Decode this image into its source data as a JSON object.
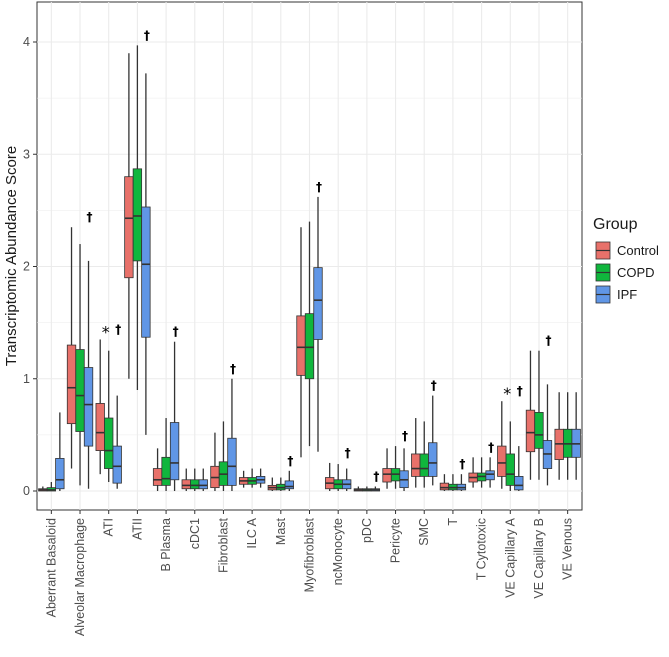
{
  "chart_data": {
    "type": "boxplot",
    "title": "",
    "xlabel": "",
    "ylabel": "Transcriptomic Abundance Score",
    "ylim": [
      -0.2,
      4.3
    ],
    "yticks": [
      0,
      1,
      2,
      3,
      4
    ],
    "grid": true,
    "legend": {
      "title": "Group",
      "placement": "right",
      "entries": [
        "Control",
        "COPD",
        "IPF"
      ]
    },
    "colors": {
      "Control": "#E8716A",
      "COPD": "#10B63D",
      "IPF": "#6096E6"
    },
    "categories": [
      "Aberrant Basaloid",
      "Alveolar Macrophage",
      "ATI",
      "ATII",
      "B Plasma",
      "cDC1",
      "Fibroblast",
      "ILC A",
      "Mast",
      "Myofibroblast",
      "ncMonocyte",
      "pDC",
      "Pericyte",
      "SMC",
      "T",
      "T Cytotoxic",
      "VE Capillary A",
      "VE Capillary B",
      "VE Venous"
    ],
    "annotations": [
      "",
      "†",
      "*†",
      "†",
      "†",
      "",
      "†",
      "",
      "†",
      "†",
      "†",
      "†",
      "†",
      "†",
      "†",
      "†",
      "*†",
      "†",
      ""
    ],
    "series": [
      {
        "name": "Control",
        "boxes": [
          {
            "min": 0,
            "q1": 0,
            "median": 0.01,
            "q3": 0.02,
            "max": 0.04
          },
          {
            "min": 0.2,
            "q1": 0.6,
            "median": 0.92,
            "q3": 1.3,
            "max": 2.35
          },
          {
            "min": 0.15,
            "q1": 0.36,
            "median": 0.52,
            "q3": 0.78,
            "max": 1.35
          },
          {
            "min": 1.0,
            "q1": 1.9,
            "median": 2.43,
            "q3": 2.8,
            "max": 3.9
          },
          {
            "min": 0,
            "q1": 0.05,
            "median": 0.1,
            "q3": 0.2,
            "max": 0.38
          },
          {
            "min": 0,
            "q1": 0.02,
            "median": 0.05,
            "q3": 0.1,
            "max": 0.2
          },
          {
            "min": 0,
            "q1": 0.03,
            "median": 0.12,
            "q3": 0.22,
            "max": 0.52
          },
          {
            "min": 0.03,
            "q1": 0.06,
            "median": 0.09,
            "q3": 0.12,
            "max": 0.18
          },
          {
            "min": 0,
            "q1": 0.01,
            "median": 0.03,
            "q3": 0.05,
            "max": 0.12
          },
          {
            "min": 0.3,
            "q1": 1.03,
            "median": 1.28,
            "q3": 1.56,
            "max": 2.35
          },
          {
            "min": 0,
            "q1": 0.02,
            "median": 0.07,
            "q3": 0.12,
            "max": 0.25
          },
          {
            "min": 0,
            "q1": 0,
            "median": 0.01,
            "q3": 0.02,
            "max": 0.04
          },
          {
            "min": 0.02,
            "q1": 0.08,
            "median": 0.15,
            "q3": 0.2,
            "max": 0.38
          },
          {
            "min": 0.03,
            "q1": 0.13,
            "median": 0.2,
            "q3": 0.33,
            "max": 0.65
          },
          {
            "min": 0,
            "q1": 0.01,
            "median": 0.03,
            "q3": 0.07,
            "max": 0.15
          },
          {
            "min": 0.03,
            "q1": 0.08,
            "median": 0.12,
            "q3": 0.16,
            "max": 0.3
          },
          {
            "min": 0.02,
            "q1": 0.13,
            "median": 0.25,
            "q3": 0.4,
            "max": 0.8
          },
          {
            "min": 0.1,
            "q1": 0.35,
            "median": 0.52,
            "q3": 0.72,
            "max": 1.25
          },
          {
            "min": 0.1,
            "q1": 0.28,
            "median": 0.42,
            "q3": 0.55,
            "max": 0.88
          }
        ]
      },
      {
        "name": "COPD",
        "boxes": [
          {
            "min": 0,
            "q1": 0,
            "median": 0.01,
            "q3": 0.03,
            "max": 0.08
          },
          {
            "min": 0.05,
            "q1": 0.53,
            "median": 0.85,
            "q3": 1.26,
            "max": 2.2
          },
          {
            "min": 0.08,
            "q1": 0.2,
            "median": 0.36,
            "q3": 0.65,
            "max": 1.25
          },
          {
            "min": 0.9,
            "q1": 2.05,
            "median": 2.45,
            "q3": 2.87,
            "max": 3.97
          },
          {
            "min": 0,
            "q1": 0.05,
            "median": 0.11,
            "q3": 0.3,
            "max": 0.65
          },
          {
            "min": 0,
            "q1": 0.02,
            "median": 0.05,
            "q3": 0.1,
            "max": 0.2
          },
          {
            "min": 0,
            "q1": 0.05,
            "median": 0.15,
            "q3": 0.26,
            "max": 0.62
          },
          {
            "min": 0.03,
            "q1": 0.06,
            "median": 0.09,
            "q3": 0.12,
            "max": 0.2
          },
          {
            "min": 0,
            "q1": 0.01,
            "median": 0.03,
            "q3": 0.06,
            "max": 0.12
          },
          {
            "min": 0.4,
            "q1": 1.0,
            "median": 1.28,
            "q3": 1.58,
            "max": 2.4
          },
          {
            "min": 0,
            "q1": 0.02,
            "median": 0.06,
            "q3": 0.1,
            "max": 0.24
          },
          {
            "min": 0,
            "q1": 0,
            "median": 0.01,
            "q3": 0.02,
            "max": 0.04
          },
          {
            "min": 0.02,
            "q1": 0.09,
            "median": 0.15,
            "q3": 0.2,
            "max": 0.4
          },
          {
            "min": 0.03,
            "q1": 0.13,
            "median": 0.2,
            "q3": 0.33,
            "max": 0.62
          },
          {
            "min": 0,
            "q1": 0.01,
            "median": 0.03,
            "q3": 0.06,
            "max": 0.15
          },
          {
            "min": 0.03,
            "q1": 0.09,
            "median": 0.13,
            "q3": 0.16,
            "max": 0.3
          },
          {
            "min": 0,
            "q1": 0.05,
            "median": 0.15,
            "q3": 0.33,
            "max": 0.62
          },
          {
            "min": 0.1,
            "q1": 0.38,
            "median": 0.5,
            "q3": 0.7,
            "max": 1.25
          },
          {
            "min": 0.1,
            "q1": 0.3,
            "median": 0.42,
            "q3": 0.55,
            "max": 0.88
          }
        ]
      },
      {
        "name": "IPF",
        "boxes": [
          {
            "min": 0,
            "q1": 0.02,
            "median": 0.1,
            "q3": 0.29,
            "max": 0.7
          },
          {
            "min": 0.02,
            "q1": 0.4,
            "median": 0.77,
            "q3": 1.1,
            "max": 2.05
          },
          {
            "min": 0.02,
            "q1": 0.07,
            "median": 0.22,
            "q3": 0.4,
            "max": 0.85
          },
          {
            "min": 0.5,
            "q1": 1.37,
            "median": 2.02,
            "q3": 2.53,
            "max": 3.72
          },
          {
            "min": 0,
            "q1": 0.1,
            "median": 0.25,
            "q3": 0.61,
            "max": 1.33
          },
          {
            "min": 0,
            "q1": 0.02,
            "median": 0.05,
            "q3": 0.1,
            "max": 0.2
          },
          {
            "min": 0,
            "q1": 0.05,
            "median": 0.22,
            "q3": 0.47,
            "max": 1.0
          },
          {
            "min": 0.03,
            "q1": 0.07,
            "median": 0.1,
            "q3": 0.13,
            "max": 0.2
          },
          {
            "min": 0,
            "q1": 0.02,
            "median": 0.04,
            "q3": 0.09,
            "max": 0.18
          },
          {
            "min": 0.35,
            "q1": 1.35,
            "median": 1.7,
            "q3": 1.99,
            "max": 2.62
          },
          {
            "min": 0,
            "q1": 0.02,
            "median": 0.06,
            "q3": 0.1,
            "max": 0.2
          },
          {
            "min": 0,
            "q1": 0,
            "median": 0.01,
            "q3": 0.02,
            "max": 0.04
          },
          {
            "min": 0,
            "q1": 0.03,
            "median": 0.1,
            "q3": 0.18,
            "max": 0.38
          },
          {
            "min": 0.05,
            "q1": 0.13,
            "median": 0.25,
            "q3": 0.43,
            "max": 0.85
          },
          {
            "min": 0,
            "q1": 0.01,
            "median": 0.03,
            "q3": 0.06,
            "max": 0.15
          },
          {
            "min": 0.03,
            "q1": 0.1,
            "median": 0.15,
            "q3": 0.18,
            "max": 0.3
          },
          {
            "min": 0,
            "q1": 0.01,
            "median": 0.05,
            "q3": 0.13,
            "max": 0.4
          },
          {
            "min": 0.05,
            "q1": 0.2,
            "median": 0.33,
            "q3": 0.45,
            "max": 0.95
          },
          {
            "min": 0.1,
            "q1": 0.3,
            "median": 0.42,
            "q3": 0.55,
            "max": 0.88
          }
        ]
      }
    ]
  }
}
